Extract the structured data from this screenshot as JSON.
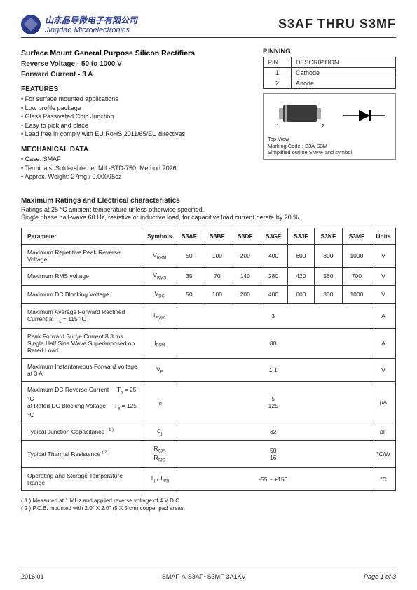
{
  "header": {
    "company_cn": "山东晶导微电子有限公司",
    "company_en": "Jingdao Microelectronics",
    "title_right": "S3AF  THRU  S3MF"
  },
  "subtitles": {
    "main": "Surface Mount General Purpose Silicon Rectifiers",
    "reverse": "Reverse Voltage - 50 to 1000 V",
    "forward": "Forward Current - 3 A"
  },
  "features": {
    "heading": "FEATURES",
    "items": [
      "For surface mounted applications",
      "Low profile package",
      "Glass Passivated Chip Junction",
      "Easy to pick and place",
      "Lead free in comply with EU RoHS 2011/65/EU directives"
    ]
  },
  "mech": {
    "heading": "MECHANICAL DATA",
    "items": [
      "Case: SMAF",
      "Terminals: Solderable per MIL-STD-750, Method 2026",
      "Approx. Weight: 27mg / 0.00095oz"
    ]
  },
  "pinning": {
    "heading": "PINNING",
    "cols": [
      "PIN",
      "DESCRIPTION"
    ],
    "rows": [
      [
        "1",
        "Cathode"
      ],
      [
        "2",
        "Anode"
      ]
    ]
  },
  "diagram": {
    "pin1": "1",
    "pin2": "2",
    "top_view": "Top View",
    "marking": "Marking Code :  S3A-S3M",
    "outline": "Simplified outline SMAF and symbol"
  },
  "ratings": {
    "title": "Maximum Ratings and Electrical characteristics",
    "note1": "Ratings at 25 °C ambient temperature unless otherwise specified.",
    "note2": "Single phase half-wave 60 Hz, resistive or inductive load, for capacitive load current derate by 20 %.",
    "headers": [
      "Parameter",
      "Symbols",
      "S3AF",
      "S3BF",
      "S3DF",
      "S3GF",
      "S3JF",
      "S3KF",
      "S3MF",
      "Units"
    ],
    "rows": [
      {
        "param": "Maximum Repetitive Peak Reverse Voltage",
        "symbol": "V<sub>RRM</sub>",
        "vals": [
          "50",
          "100",
          "200",
          "400",
          "600",
          "800",
          "1000"
        ],
        "unit": "V"
      },
      {
        "param": "Maximum RMS voltage",
        "symbol": "V<sub>RMS</sub>",
        "vals": [
          "35",
          "70",
          "140",
          "280",
          "420",
          "560",
          "700"
        ],
        "unit": "V"
      },
      {
        "param": "Maximum DC Blocking Voltage",
        "symbol": "V<sub>DC</sub>",
        "vals": [
          "50",
          "100",
          "200",
          "400",
          "600",
          "800",
          "1000"
        ],
        "unit": "V"
      },
      {
        "param": "Maximum Average Forward Rectified Current at T<sub>L</sub> = 115 °C",
        "symbol": "I<sub>F(AV)</sub>",
        "merged": "3",
        "unit": "A"
      },
      {
        "param": "Peak Forward Surge Current 8.3 ms Single Half Sine Wave Superimposed on Rated Load",
        "symbol": "I<sub>FSM</sub>",
        "merged": "80",
        "unit": "A"
      },
      {
        "param": "Maximum Instantaneous Forward Voltage at 3 A",
        "symbol": "V<sub>F</sub>",
        "merged": "1.1",
        "unit": "V"
      },
      {
        "param": "Maximum DC Reverse Current &nbsp;&nbsp;&nbsp; T<sub>a</sub> = 25 °C<br>at Rated DC Blocking Voltage &nbsp;&nbsp;&nbsp; T<sub>a</sub> = 125 °C",
        "symbol": "I<sub>R</sub>",
        "merged": "5<br>125",
        "unit": "µA"
      },
      {
        "param": "Typical Junction Capacitance <sup>( 1 )</sup>",
        "symbol": "C<sub>j</sub>",
        "merged": "32",
        "unit": "pF"
      },
      {
        "param": "Typical Thermal Resistance <sup>( 2 )</sup>",
        "symbol": "R<sub>θJA</sub><br>R<sub>θJC</sub>",
        "merged": "50<br>16",
        "unit": "°C/W"
      },
      {
        "param": "Operating and Storage Temperature Range",
        "symbol": "T<sub>j</sub> , T<sub>stg</sub>",
        "merged": "-55 ~ +150",
        "unit": "°C"
      }
    ]
  },
  "footnotes": {
    "f1": "( 1 ) Measured at 1 MHz and applied reverse voltage of 4 V D.C",
    "f2": "( 2 ) P.C.B. mounted with 2.0\" X 2.0\" (5 X 5 cm) copper pad areas."
  },
  "footer": {
    "date": "2016.01",
    "mid": "SMAF-A-S3AF~S3MF-3A1KV",
    "page": "Page 1 of 3"
  },
  "colors": {
    "brand": "#2a3a90",
    "border": "#333333"
  }
}
